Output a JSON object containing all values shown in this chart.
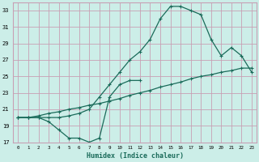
{
  "title": "",
  "xlabel": "Humidex (Indice chaleur)",
  "ylabel": "",
  "bg_color": "#cceee8",
  "grid_color": "#c8a0b4",
  "line_color": "#1a6b5a",
  "xlim": [
    -0.5,
    23.5
  ],
  "ylim": [
    17,
    34
  ],
  "xticks": [
    0,
    1,
    2,
    3,
    4,
    5,
    6,
    7,
    8,
    9,
    10,
    11,
    12,
    13,
    14,
    15,
    16,
    17,
    18,
    19,
    20,
    21,
    22,
    23
  ],
  "yticks": [
    17,
    19,
    21,
    23,
    25,
    27,
    29,
    31,
    33
  ],
  "line1_x": [
    0,
    1,
    2,
    3,
    4,
    5,
    6,
    7,
    8,
    9,
    10,
    11,
    12,
    13,
    14,
    15,
    16,
    17,
    18,
    19,
    20,
    21,
    22,
    23
  ],
  "line1_y": [
    20.0,
    20.0,
    20.2,
    20.5,
    20.7,
    21.0,
    21.2,
    21.5,
    21.7,
    22.0,
    22.3,
    22.7,
    23.0,
    23.3,
    23.7,
    24.0,
    24.3,
    24.7,
    25.0,
    25.2,
    25.5,
    25.7,
    26.0,
    26.0
  ],
  "line2_x": [
    0,
    1,
    2,
    3,
    4,
    5,
    6,
    7,
    8,
    9,
    10,
    11,
    12,
    13,
    14,
    15,
    16,
    17,
    18,
    19,
    20,
    21,
    22,
    23
  ],
  "line2_y": [
    20.0,
    20.0,
    20.0,
    20.0,
    20.0,
    20.2,
    20.5,
    21.0,
    22.5,
    24.0,
    25.5,
    27.0,
    28.0,
    29.5,
    32.0,
    33.5,
    33.5,
    33.0,
    32.5,
    29.5,
    27.5,
    28.5,
    27.5,
    25.5
  ],
  "line3_x": [
    0,
    1,
    2,
    3,
    4,
    5,
    6,
    7,
    8,
    9,
    10,
    11,
    12
  ],
  "line3_y": [
    20.0,
    20.0,
    20.0,
    19.5,
    18.5,
    17.5,
    17.5,
    17.0,
    17.5,
    22.5,
    24.0,
    24.5,
    24.5
  ]
}
